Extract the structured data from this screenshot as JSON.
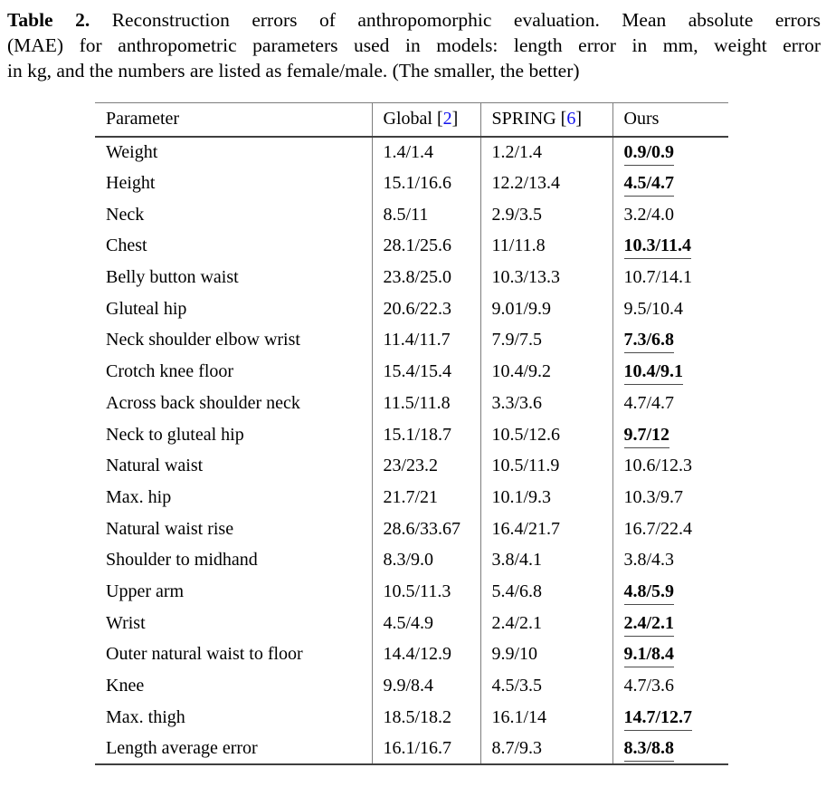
{
  "caption": {
    "label": "Table 2.",
    "lines": [
      "Reconstruction errors of anthropomorphic evaluation. Mean absolute errors",
      "(MAE) for anthropometric parameters used in models: length error in mm, weight error",
      "in kg, and the numbers are listed as female/male. (The smaller, the better)"
    ]
  },
  "colors": {
    "cite_blue": "#1212ee",
    "rule_dark": "#3f3f3f",
    "rule_mid": "#7d7d7d",
    "underline": "#4c4c4c",
    "text": "#000000"
  },
  "table": {
    "columns": [
      {
        "label": "Parameter"
      },
      {
        "label": "Global",
        "cite_open": "[",
        "cite": "2",
        "cite_close": "]"
      },
      {
        "label": "SPRING",
        "cite_open": "[",
        "cite": "6",
        "cite_close": "]"
      },
      {
        "label": "Ours"
      }
    ],
    "rows": [
      {
        "parameter": "Weight",
        "global": "1.4/1.4",
        "spring": "1.2/1.4",
        "ours": "0.9/0.9",
        "best": true
      },
      {
        "parameter": "Height",
        "global": "15.1/16.6",
        "spring": "12.2/13.4",
        "ours": "4.5/4.7",
        "best": true
      },
      {
        "parameter": "Neck",
        "global": "8.5/11",
        "spring": "2.9/3.5",
        "ours": "3.2/4.0",
        "best": false
      },
      {
        "parameter": "Chest",
        "global": "28.1/25.6",
        "spring": "11/11.8",
        "ours": "10.3/11.4",
        "best": true
      },
      {
        "parameter": "Belly button waist",
        "global": "23.8/25.0",
        "spring": "10.3/13.3",
        "ours": "10.7/14.1",
        "best": false
      },
      {
        "parameter": "Gluteal hip",
        "global": "20.6/22.3",
        "spring": "9.01/9.9",
        "ours": "9.5/10.4",
        "best": false
      },
      {
        "parameter": "Neck shoulder elbow wrist",
        "global": "11.4/11.7",
        "spring": "7.9/7.5",
        "ours": "7.3/6.8",
        "best": true
      },
      {
        "parameter": "Crotch knee floor",
        "global": "15.4/15.4",
        "spring": "10.4/9.2",
        "ours": "10.4/9.1",
        "best": true
      },
      {
        "parameter": "Across back shoulder neck",
        "global": "11.5/11.8",
        "spring": "3.3/3.6",
        "ours": "4.7/4.7",
        "best": false
      },
      {
        "parameter": "Neck to gluteal hip",
        "global": "15.1/18.7",
        "spring": "10.5/12.6",
        "ours": "9.7/12",
        "best": true
      },
      {
        "parameter": "Natural waist",
        "global": "23/23.2",
        "spring": "10.5/11.9",
        "ours": "10.6/12.3",
        "best": false
      },
      {
        "parameter": "Max. hip",
        "global": "21.7/21",
        "spring": "10.1/9.3",
        "ours": "10.3/9.7",
        "best": false
      },
      {
        "parameter": "Natural waist rise",
        "global": "28.6/33.67",
        "spring": "16.4/21.7",
        "ours": "16.7/22.4",
        "best": false
      },
      {
        "parameter": "Shoulder to midhand",
        "global": "8.3/9.0",
        "spring": "3.8/4.1",
        "ours": "3.8/4.3",
        "best": false
      },
      {
        "parameter": "Upper arm",
        "global": "10.5/11.3",
        "spring": "5.4/6.8",
        "ours": "4.8/5.9",
        "best": true
      },
      {
        "parameter": "Wrist",
        "global": "4.5/4.9",
        "spring": "2.4/2.1",
        "ours": "2.4/2.1",
        "best": true
      },
      {
        "parameter": "Outer natural waist to floor",
        "global": "14.4/12.9",
        "spring": "9.9/10",
        "ours": "9.1/8.4",
        "best": true
      },
      {
        "parameter": "Knee",
        "global": "9.9/8.4",
        "spring": "4.5/3.5",
        "ours": "4.7/3.6",
        "best": false
      },
      {
        "parameter": "Max. thigh",
        "global": "18.5/18.2",
        "spring": "16.1/14",
        "ours": "14.7/12.7",
        "best": true
      },
      {
        "parameter": "Length average error",
        "global": "16.1/16.7",
        "spring": "8.7/9.3",
        "ours": "8.3/8.8",
        "best": true
      }
    ]
  }
}
